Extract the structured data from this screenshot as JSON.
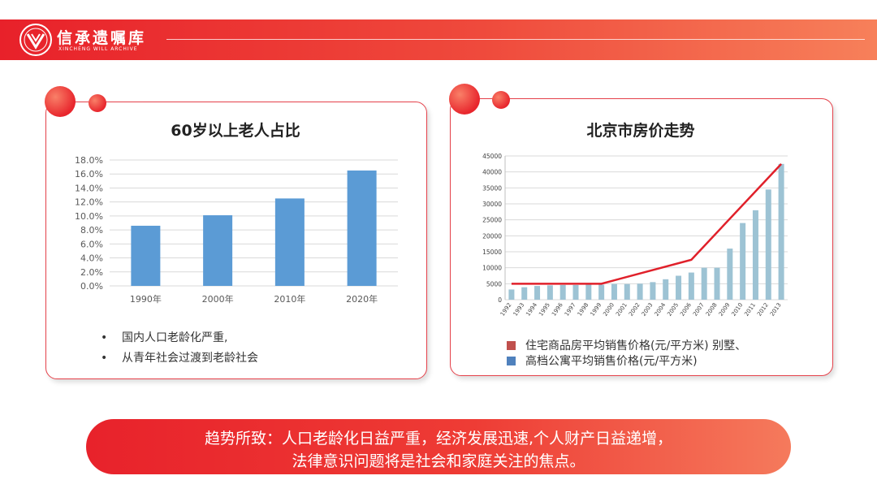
{
  "brand": {
    "name": "信承遗嘱库",
    "subtitle": "XINCHENG WILL ARCHIVE"
  },
  "left_card": {
    "title": "60岁以上老人占比",
    "bullets": [
      "国内人口老龄化严重,",
      "从青年社会过渡到老龄社会"
    ]
  },
  "right_card": {
    "title": "北京市房价走势",
    "legend": [
      "住宅商品房平均销售价格(元/平方米) 别墅、",
      "高档公寓平均销售价格(元/平方米)"
    ]
  },
  "banner": {
    "line1": "趋势所致：人口老龄化日益严重，经济发展迅速,个人财产日益递增，",
    "line2": "法律意识问题将是社会和家庭关注的焦点。"
  },
  "colors": {
    "accent": "#e8212a",
    "bar_left": "#5b9bd5",
    "bar_right": "#9dc3d4",
    "line_right": "#e0202a"
  },
  "chart_data": [
    {
      "type": "bar",
      "title": "60岁以上老人占比",
      "categories": [
        "1990年",
        "2000年",
        "2010年",
        "2020年"
      ],
      "values": [
        8.6,
        10.1,
        12.5,
        16.5
      ],
      "ylim": [
        0,
        18
      ],
      "yticks": [
        "0.0%",
        "2.0%",
        "4.0%",
        "6.0%",
        "8.0%",
        "10.0%",
        "12.0%",
        "14.0%",
        "16.0%",
        "18.0%"
      ],
      "grid": true
    },
    {
      "type": "bar+line",
      "title": "北京市房价走势",
      "categories": [
        "1992",
        "1993",
        "1994",
        "1995",
        "1996",
        "1997",
        "1998",
        "1999",
        "2000",
        "2001",
        "2002",
        "2003",
        "2004",
        "2005",
        "2006",
        "2007",
        "2008",
        "2009",
        "2010",
        "2011",
        "2012",
        "2013"
      ],
      "yticks": [
        "0",
        "5000",
        "10000",
        "15000",
        "20000",
        "25000",
        "30000",
        "35000",
        "40000",
        "45000"
      ],
      "ylim": [
        0,
        45000
      ],
      "series": [
        {
          "name": "住宅商品房平均销售价格(元/平方米) 别墅、",
          "type": "line",
          "points": [
            [
              "1992",
              5000
            ],
            [
              "1999",
              5000
            ],
            [
              "2006",
              12500
            ],
            [
              "2013",
              42500
            ]
          ]
        },
        {
          "name": "高档公寓平均销售价格(元/平方米)",
          "type": "bar",
          "values": [
            3200,
            3900,
            4300,
            4500,
            4600,
            4600,
            4700,
            4700,
            4900,
            4900,
            5000,
            5500,
            6400,
            7500,
            8500,
            10000,
            10000,
            16000,
            24000,
            28000,
            34500,
            42500
          ]
        }
      ],
      "grid": true,
      "legend_position": "bottom"
    }
  ]
}
